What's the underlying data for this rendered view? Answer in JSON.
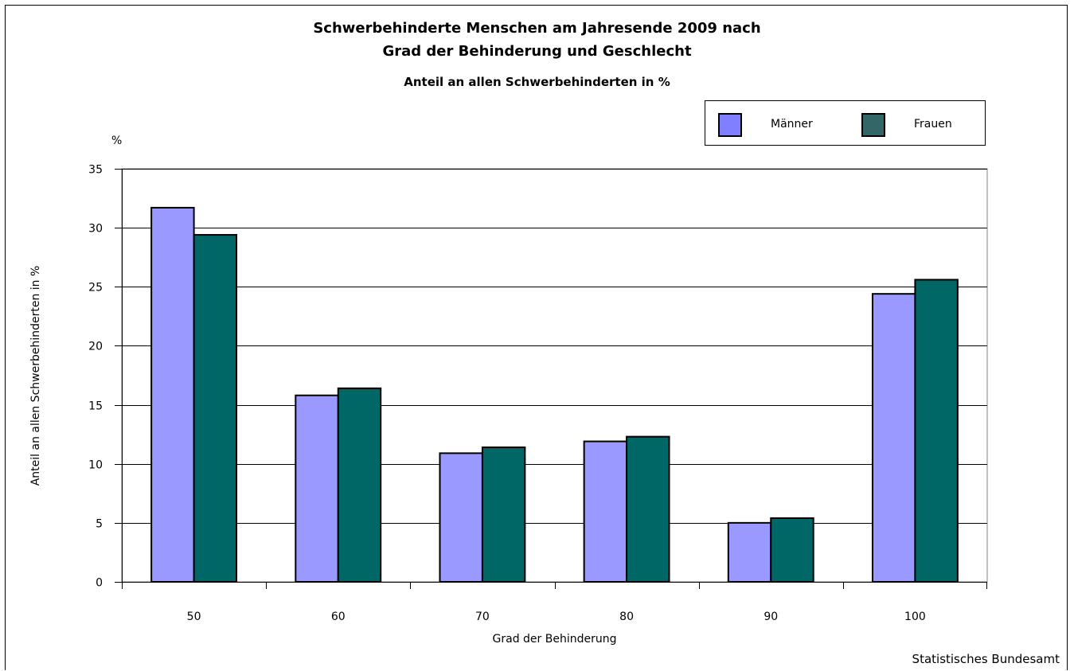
{
  "chart_data": {
    "type": "bar",
    "title": "Schwerbehinderte Menschen am Jahresende 2009 nach",
    "title_line2": "Grad der Behinderung und Geschlecht",
    "subtitle": "Anteil an allen Schwerbehinderten in %",
    "unit_label": "%",
    "xlabel": "Grad der Behinderung",
    "ylabel": "Anteil an allen Schwerbehinderten in %",
    "categories": [
      "50",
      "60",
      "70",
      "80",
      "90",
      "100"
    ],
    "series": [
      {
        "name": "Männer",
        "color": "#9999ff",
        "values": [
          31.7,
          15.8,
          10.9,
          11.9,
          5.0,
          24.4
        ]
      },
      {
        "name": "Frauen",
        "color": "#006666",
        "values": [
          29.4,
          16.4,
          11.4,
          12.3,
          5.4,
          25.6
        ]
      }
    ],
    "legend_swatch_colors": [
      "#7f7fff",
      "#336666"
    ],
    "ylim": [
      0,
      35
    ],
    "yticks": [
      "0",
      "5",
      "10",
      "15",
      "20",
      "25",
      "30",
      "35"
    ],
    "grid": true,
    "legend_position": "top-right",
    "source": "Statistisches Bundesamt"
  }
}
